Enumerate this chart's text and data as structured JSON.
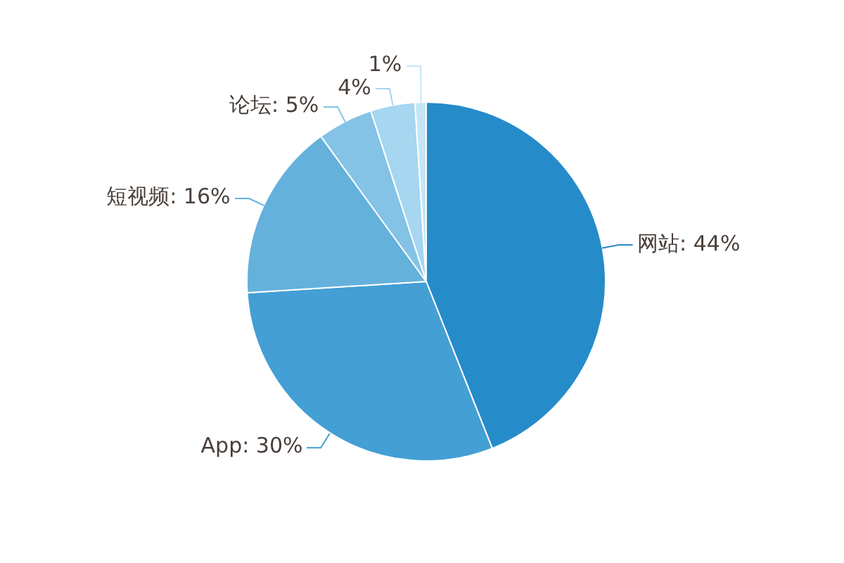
{
  "chart_data": {
    "type": "pie",
    "categories": [
      "网站",
      "App",
      "短视频",
      "论坛",
      null,
      null
    ],
    "values": [
      44,
      30,
      16,
      5,
      4,
      1
    ],
    "value_labels": [
      ": 44%",
      ": 30%",
      ": 16%",
      ": 5%",
      "4%",
      "1%"
    ],
    "colors": [
      "#268bc9",
      "#439fd4",
      "#64b1dc",
      "#84c3e6",
      "#a6d6f0",
      "#c6e6f6"
    ],
    "legend": false
  }
}
